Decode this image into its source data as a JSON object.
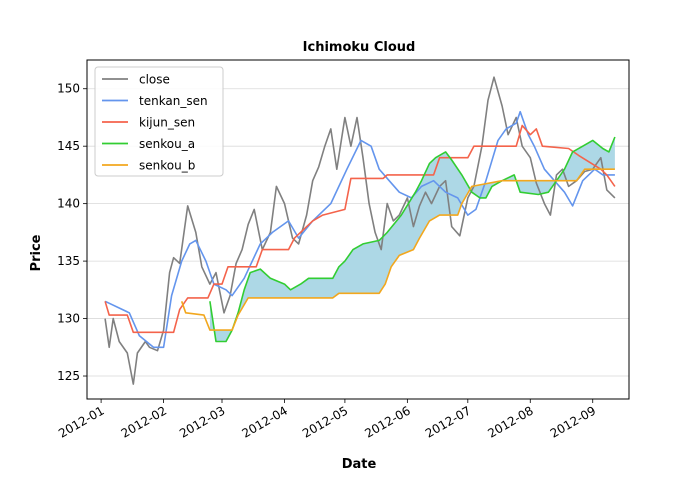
{
  "chart_data": {
    "type": "line",
    "title": "Ichimoku Cloud",
    "xlabel": "Date",
    "ylabel": "Price",
    "xlim": [
      "2011-12-25",
      "2012-09-19"
    ],
    "ylim": [
      123.0,
      152.5
    ],
    "x_ticks": [
      "2012-01-01",
      "2012-02-01",
      "2012-03-01",
      "2012-04-01",
      "2012-05-01",
      "2012-06-01",
      "2012-07-01",
      "2012-08-01",
      "2012-09-01"
    ],
    "x_tick_labels": [
      "2012-01",
      "2012-02",
      "2012-03",
      "2012-04",
      "2012-05",
      "2012-06",
      "2012-07",
      "2012-08",
      "2012-09"
    ],
    "y_ticks": [
      125,
      130,
      135,
      140,
      145,
      150
    ],
    "grid": "horizontal",
    "legend_position": "top-left",
    "cloud": {
      "between": [
        "senkou_a",
        "senkou_b"
      ],
      "color": "#add8e6"
    },
    "series": [
      {
        "name": "close",
        "color": "#808080",
        "points": [
          [
            "2012-01-03",
            130
          ],
          [
            "2012-01-05",
            127.5
          ],
          [
            "2012-01-07",
            130
          ],
          [
            "2012-01-10",
            128
          ],
          [
            "2012-01-14",
            127
          ],
          [
            "2012-01-17",
            124.3
          ],
          [
            "2012-01-19",
            127
          ],
          [
            "2012-01-23",
            128
          ],
          [
            "2012-01-25",
            127.5
          ],
          [
            "2012-01-29",
            127.2
          ],
          [
            "2012-02-01",
            129
          ],
          [
            "2012-02-04",
            134
          ],
          [
            "2012-02-06",
            135.3
          ],
          [
            "2012-02-09",
            134.8
          ],
          [
            "2012-02-13",
            139.8
          ],
          [
            "2012-02-17",
            137.5
          ],
          [
            "2012-02-20",
            134.5
          ],
          [
            "2012-02-24",
            133
          ],
          [
            "2012-02-27",
            134
          ],
          [
            "2012-03-02",
            130.5
          ],
          [
            "2012-03-05",
            132
          ],
          [
            "2012-03-08",
            134.8
          ],
          [
            "2012-03-11",
            136
          ],
          [
            "2012-03-14",
            138.2
          ],
          [
            "2012-03-17",
            139.5
          ],
          [
            "2012-03-21",
            136
          ],
          [
            "2012-03-25",
            137.5
          ],
          [
            "2012-03-28",
            141.5
          ],
          [
            "2012-04-01",
            140
          ],
          [
            "2012-04-05",
            137
          ],
          [
            "2012-04-08",
            136.5
          ],
          [
            "2012-04-12",
            139
          ],
          [
            "2012-04-15",
            142
          ],
          [
            "2012-04-18",
            143.2
          ],
          [
            "2012-04-21",
            145
          ],
          [
            "2012-04-24",
            146.5
          ],
          [
            "2012-04-27",
            143
          ],
          [
            "2012-05-01",
            147.5
          ],
          [
            "2012-05-04",
            145
          ],
          [
            "2012-05-07",
            147.5
          ],
          [
            "2012-05-10",
            144
          ],
          [
            "2012-05-13",
            140
          ],
          [
            "2012-05-16",
            137.5
          ],
          [
            "2012-05-19",
            136
          ],
          [
            "2012-05-22",
            140
          ],
          [
            "2012-05-25",
            138.5
          ],
          [
            "2012-05-28",
            139
          ],
          [
            "2012-06-01",
            140.5
          ],
          [
            "2012-06-04",
            138
          ],
          [
            "2012-06-07",
            139.8
          ],
          [
            "2012-06-10",
            141
          ],
          [
            "2012-06-13",
            140
          ],
          [
            "2012-06-17",
            141.5
          ],
          [
            "2012-06-20",
            142
          ],
          [
            "2012-06-23",
            138
          ],
          [
            "2012-06-27",
            137.2
          ],
          [
            "2012-07-01",
            140.5
          ],
          [
            "2012-07-04",
            141.5
          ],
          [
            "2012-07-08",
            145
          ],
          [
            "2012-07-11",
            149
          ],
          [
            "2012-07-14",
            151
          ],
          [
            "2012-07-18",
            148.5
          ],
          [
            "2012-07-21",
            146
          ],
          [
            "2012-07-25",
            147.5
          ],
          [
            "2012-07-28",
            145
          ],
          [
            "2012-08-01",
            144
          ],
          [
            "2012-08-04",
            141.8
          ],
          [
            "2012-08-08",
            140
          ],
          [
            "2012-08-11",
            139
          ],
          [
            "2012-08-14",
            142.5
          ],
          [
            "2012-08-17",
            143
          ],
          [
            "2012-08-20",
            141.5
          ],
          [
            "2012-08-24",
            142
          ],
          [
            "2012-08-28",
            142.8
          ],
          [
            "2012-09-01",
            143
          ],
          [
            "2012-09-05",
            144
          ],
          [
            "2012-09-08",
            141.2
          ],
          [
            "2012-09-12",
            140.5
          ]
        ]
      },
      {
        "name": "tenkan_sen",
        "color": "#6495ed",
        "points": [
          [
            "2012-01-03",
            131.5
          ],
          [
            "2012-01-15",
            130.5
          ],
          [
            "2012-01-20",
            128.5
          ],
          [
            "2012-01-27",
            127.5
          ],
          [
            "2012-02-01",
            127.5
          ],
          [
            "2012-02-05",
            132
          ],
          [
            "2012-02-10",
            135
          ],
          [
            "2012-02-14",
            136.5
          ],
          [
            "2012-02-17",
            136.8
          ],
          [
            "2012-02-22",
            135
          ],
          [
            "2012-02-26",
            133
          ],
          [
            "2012-03-03",
            132.5
          ],
          [
            "2012-03-06",
            132
          ],
          [
            "2012-03-12",
            133.5
          ],
          [
            "2012-03-20",
            136.5
          ],
          [
            "2012-03-26",
            137.5
          ],
          [
            "2012-04-03",
            138.5
          ],
          [
            "2012-04-08",
            137
          ],
          [
            "2012-04-15",
            138.5
          ],
          [
            "2012-04-24",
            140
          ],
          [
            "2012-05-02",
            143
          ],
          [
            "2012-05-09",
            145.5
          ],
          [
            "2012-05-14",
            145
          ],
          [
            "2012-05-18",
            143
          ],
          [
            "2012-05-23",
            142
          ],
          [
            "2012-05-28",
            141
          ],
          [
            "2012-06-03",
            140.5
          ],
          [
            "2012-06-08",
            141.5
          ],
          [
            "2012-06-14",
            142
          ],
          [
            "2012-06-20",
            141
          ],
          [
            "2012-06-26",
            140.5
          ],
          [
            "2012-07-01",
            139
          ],
          [
            "2012-07-05",
            139.5
          ],
          [
            "2012-07-10",
            142
          ],
          [
            "2012-07-16",
            145.5
          ],
          [
            "2012-07-20",
            146.5
          ],
          [
            "2012-07-25",
            147
          ],
          [
            "2012-07-27",
            148
          ],
          [
            "2012-07-31",
            146
          ],
          [
            "2012-08-03",
            145
          ],
          [
            "2012-08-08",
            143
          ],
          [
            "2012-08-13",
            142
          ],
          [
            "2012-08-18",
            141
          ],
          [
            "2012-08-22",
            139.8
          ],
          [
            "2012-08-27",
            142
          ],
          [
            "2012-09-02",
            143
          ],
          [
            "2012-09-06",
            142.5
          ],
          [
            "2012-09-12",
            142.5
          ]
        ]
      },
      {
        "name": "kijun_sen",
        "color": "#f4634b",
        "points": [
          [
            "2012-01-03",
            131.5
          ],
          [
            "2012-01-05",
            130.3
          ],
          [
            "2012-01-14",
            130.3
          ],
          [
            "2012-01-17",
            128.8
          ],
          [
            "2012-02-06",
            128.8
          ],
          [
            "2012-02-09",
            130.8
          ],
          [
            "2012-02-13",
            131.8
          ],
          [
            "2012-02-23",
            131.8
          ],
          [
            "2012-02-26",
            133
          ],
          [
            "2012-03-01",
            133
          ],
          [
            "2012-03-04",
            134.5
          ],
          [
            "2012-03-18",
            134.5
          ],
          [
            "2012-03-21",
            136
          ],
          [
            "2012-04-03",
            136
          ],
          [
            "2012-04-06",
            137
          ],
          [
            "2012-04-15",
            138.5
          ],
          [
            "2012-04-20",
            139
          ],
          [
            "2012-05-01",
            139.5
          ],
          [
            "2012-05-04",
            142.2
          ],
          [
            "2012-05-20",
            142.2
          ],
          [
            "2012-05-22",
            142.5
          ],
          [
            "2012-06-14",
            142.5
          ],
          [
            "2012-06-17",
            144
          ],
          [
            "2012-07-01",
            144
          ],
          [
            "2012-07-04",
            145
          ],
          [
            "2012-07-25",
            145
          ],
          [
            "2012-07-28",
            146.8
          ],
          [
            "2012-08-01",
            146
          ],
          [
            "2012-08-04",
            146.5
          ],
          [
            "2012-08-07",
            145
          ],
          [
            "2012-08-20",
            144.8
          ],
          [
            "2012-08-25",
            144.2
          ],
          [
            "2012-09-05",
            143
          ],
          [
            "2012-09-08",
            142.5
          ],
          [
            "2012-09-12",
            141.5
          ]
        ]
      },
      {
        "name": "senkou_a",
        "color": "#32cd32",
        "points": [
          [
            "2012-02-24",
            131.5
          ],
          [
            "2012-02-27",
            128
          ],
          [
            "2012-03-03",
            128
          ],
          [
            "2012-03-06",
            129
          ],
          [
            "2012-03-09",
            130.5
          ],
          [
            "2012-03-12",
            132.5
          ],
          [
            "2012-03-15",
            134
          ],
          [
            "2012-03-20",
            134.3
          ],
          [
            "2012-03-25",
            133.5
          ],
          [
            "2012-04-01",
            133
          ],
          [
            "2012-04-04",
            132.5
          ],
          [
            "2012-04-09",
            133
          ],
          [
            "2012-04-13",
            133.5
          ],
          [
            "2012-04-25",
            133.5
          ],
          [
            "2012-04-28",
            134.5
          ],
          [
            "2012-05-01",
            135
          ],
          [
            "2012-05-05",
            136
          ],
          [
            "2012-05-10",
            136.5
          ],
          [
            "2012-05-18",
            136.8
          ],
          [
            "2012-05-22",
            137.5
          ],
          [
            "2012-05-29",
            139
          ],
          [
            "2012-06-05",
            141
          ],
          [
            "2012-06-08",
            142
          ],
          [
            "2012-06-12",
            143.5
          ],
          [
            "2012-06-15",
            144
          ],
          [
            "2012-06-20",
            144.5
          ],
          [
            "2012-06-23",
            143.8
          ],
          [
            "2012-06-28",
            142.5
          ],
          [
            "2012-07-03",
            141
          ],
          [
            "2012-07-07",
            140.5
          ],
          [
            "2012-07-10",
            140.5
          ],
          [
            "2012-07-13",
            141.5
          ],
          [
            "2012-07-18",
            142
          ],
          [
            "2012-07-24",
            142.5
          ],
          [
            "2012-07-27",
            141
          ],
          [
            "2012-08-05",
            140.8
          ],
          [
            "2012-08-10",
            141
          ],
          [
            "2012-08-14",
            142
          ],
          [
            "2012-08-18",
            143
          ],
          [
            "2012-08-22",
            144.5
          ],
          [
            "2012-08-27",
            145
          ],
          [
            "2012-09-01",
            145.5
          ],
          [
            "2012-09-06",
            144.8
          ],
          [
            "2012-09-09",
            144.5
          ],
          [
            "2012-09-12",
            145.8
          ]
        ]
      },
      {
        "name": "senkou_b",
        "color": "#f2a71e",
        "points": [
          [
            "2012-02-10",
            131.5
          ],
          [
            "2012-02-12",
            130.5
          ],
          [
            "2012-02-21",
            130.3
          ],
          [
            "2012-02-24",
            129
          ],
          [
            "2012-03-06",
            129
          ],
          [
            "2012-03-09",
            130.3
          ],
          [
            "2012-03-14",
            131.8
          ],
          [
            "2012-04-25",
            131.8
          ],
          [
            "2012-04-28",
            132.2
          ],
          [
            "2012-05-18",
            132.2
          ],
          [
            "2012-05-21",
            133
          ],
          [
            "2012-05-24",
            134.5
          ],
          [
            "2012-05-28",
            135.5
          ],
          [
            "2012-06-04",
            136
          ],
          [
            "2012-06-07",
            137
          ],
          [
            "2012-06-12",
            138.5
          ],
          [
            "2012-06-17",
            139
          ],
          [
            "2012-06-26",
            139
          ],
          [
            "2012-06-28",
            140
          ],
          [
            "2012-07-03",
            141.5
          ],
          [
            "2012-07-18",
            142
          ],
          [
            "2012-08-24",
            142
          ],
          [
            "2012-08-28",
            143
          ],
          [
            "2012-09-12",
            143
          ]
        ]
      }
    ]
  }
}
